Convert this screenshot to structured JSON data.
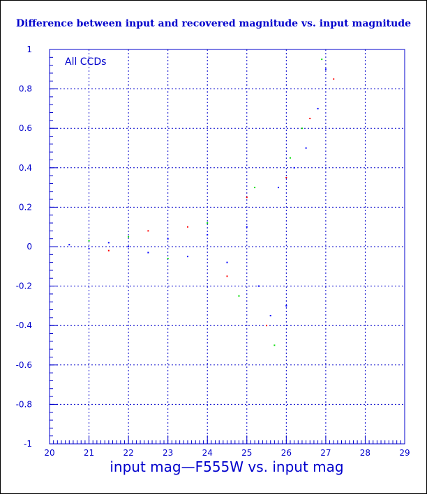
{
  "chart_data": {
    "type": "scatter",
    "title": "Difference between input and recovered magnitude vs. input magnitude",
    "xlabel": "input mag—F555W vs. input mag",
    "ylabel": "",
    "annotation": "All CCDs",
    "xlim": [
      20,
      29
    ],
    "ylim": [
      -1,
      1
    ],
    "x_ticks": [
      "20",
      "21",
      "22",
      "23",
      "24",
      "25",
      "26",
      "27",
      "28",
      "29"
    ],
    "y_ticks": [
      "-1",
      "-0.8",
      "-0.6",
      "-0.4",
      "-0.2",
      "0",
      "0.2",
      "0.4",
      "0.6",
      "0.8",
      "1"
    ],
    "grid": true,
    "series": [
      {
        "color": "#0000ff",
        "points": [
          [
            20.5,
            0.01
          ],
          [
            21.0,
            -0.01
          ],
          [
            21.5,
            0.02
          ],
          [
            22.0,
            0.0
          ],
          [
            22.5,
            -0.03
          ],
          [
            23.0,
            0.04
          ],
          [
            23.5,
            -0.05
          ],
          [
            24.0,
            0.06
          ],
          [
            24.5,
            -0.08
          ],
          [
            25.0,
            0.1
          ],
          [
            25.3,
            -0.2
          ],
          [
            25.6,
            -0.35
          ],
          [
            25.8,
            0.3
          ],
          [
            26.0,
            -0.3
          ],
          [
            26.2,
            0.4
          ],
          [
            26.5,
            0.5
          ],
          [
            26.8,
            0.7
          ],
          [
            27.0,
            0.9
          ]
        ]
      },
      {
        "color": "#00dd00",
        "points": [
          [
            21.0,
            0.03
          ],
          [
            22.0,
            0.05
          ],
          [
            23.0,
            -0.06
          ],
          [
            24.0,
            0.12
          ],
          [
            24.8,
            -0.25
          ],
          [
            25.2,
            0.3
          ],
          [
            25.7,
            -0.5
          ],
          [
            26.1,
            0.45
          ],
          [
            26.4,
            0.6
          ],
          [
            26.9,
            0.95
          ]
        ]
      },
      {
        "color": "#ff0000",
        "points": [
          [
            21.5,
            -0.02
          ],
          [
            22.5,
            0.08
          ],
          [
            23.5,
            0.1
          ],
          [
            24.5,
            -0.15
          ],
          [
            25.0,
            0.25
          ],
          [
            25.5,
            -0.4
          ],
          [
            26.0,
            0.35
          ],
          [
            26.6,
            0.65
          ],
          [
            27.2,
            0.85
          ]
        ]
      }
    ]
  },
  "colors": {
    "axis": "#0000cc",
    "grid": "#0000cc",
    "title": "#0000cc"
  }
}
